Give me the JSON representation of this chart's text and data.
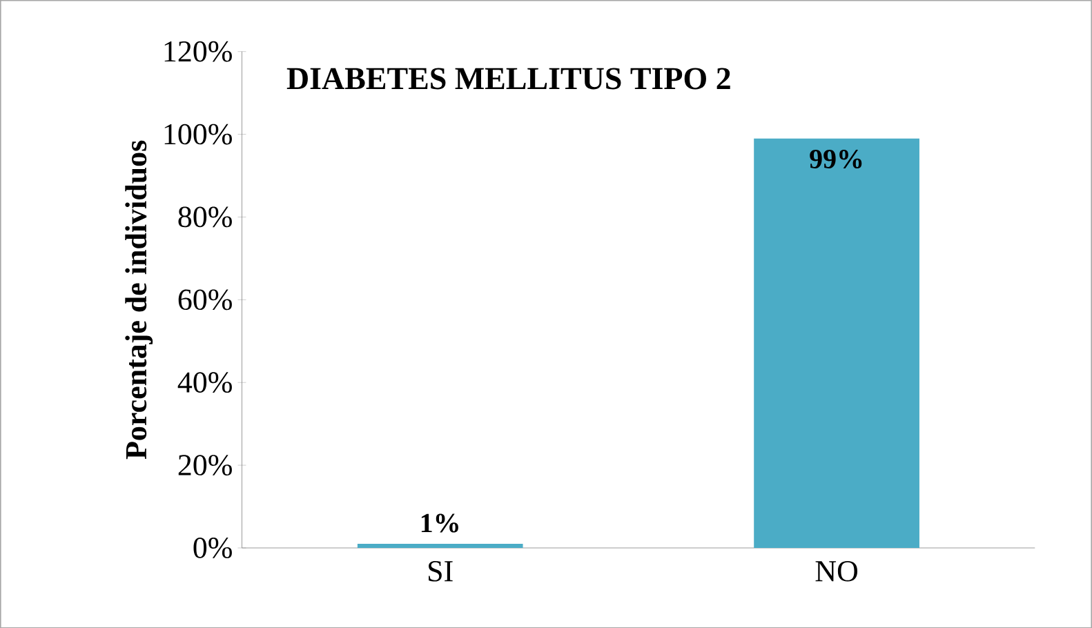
{
  "chart_data": {
    "type": "bar",
    "title": "DIABETES MELLITUS TIPO 2",
    "ylabel": "Porcentaje de individuos",
    "categories": [
      "SI",
      "NO"
    ],
    "values": [
      1,
      99
    ],
    "color": "#4bacc6",
    "value_labels": [
      "1%",
      "99%"
    ],
    "ylim": [
      0,
      120
    ],
    "yticks": [
      {
        "value": 0,
        "label": "0%"
      },
      {
        "value": 20,
        "label": "20%"
      },
      {
        "value": 40,
        "label": "40%"
      },
      {
        "value": 60,
        "label": "60%"
      },
      {
        "value": 80,
        "label": "80%"
      },
      {
        "value": 100,
        "label": "100%"
      },
      {
        "value": 120,
        "label": "120%"
      }
    ],
    "grid": false
  }
}
